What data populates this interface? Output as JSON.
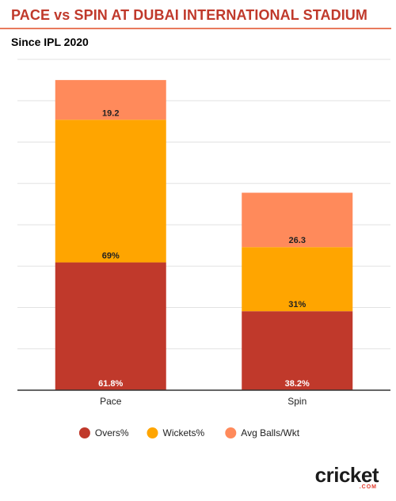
{
  "title": "PACE vs SPIN AT DUBAI INTERNATIONAL STADIUM",
  "subtitle": "Since IPL 2020",
  "brand": {
    "main": "cricket",
    "sub": ".COM"
  },
  "chart_data": {
    "type": "bar",
    "stacked": true,
    "title": "PACE vs SPIN AT DUBAI INTERNATIONAL STADIUM",
    "subtitle": "Since IPL 2020",
    "categories": [
      "Pace",
      "Spin"
    ],
    "series": [
      {
        "name": "Overs%",
        "values": [
          61.8,
          38.2
        ],
        "labels": [
          "61.8%",
          "38.2%"
        ],
        "color": "#c0392b",
        "label_color": "#ffffff"
      },
      {
        "name": "Wickets%",
        "values": [
          69,
          31
        ],
        "labels": [
          "69%",
          "31%"
        ],
        "color": "#ffa500",
        "label_color": "#222222"
      },
      {
        "name": "Avg Balls/Wkt",
        "values": [
          19.2,
          26.3
        ],
        "labels": [
          "19.2",
          "26.3"
        ],
        "color": "#ff8a5b",
        "label_color": "#222222"
      }
    ],
    "xlabel": "",
    "ylabel": "",
    "ylim": [
      0,
      160
    ],
    "grid": true,
    "y_tick_labels_shown": false,
    "legend": "bottom"
  }
}
